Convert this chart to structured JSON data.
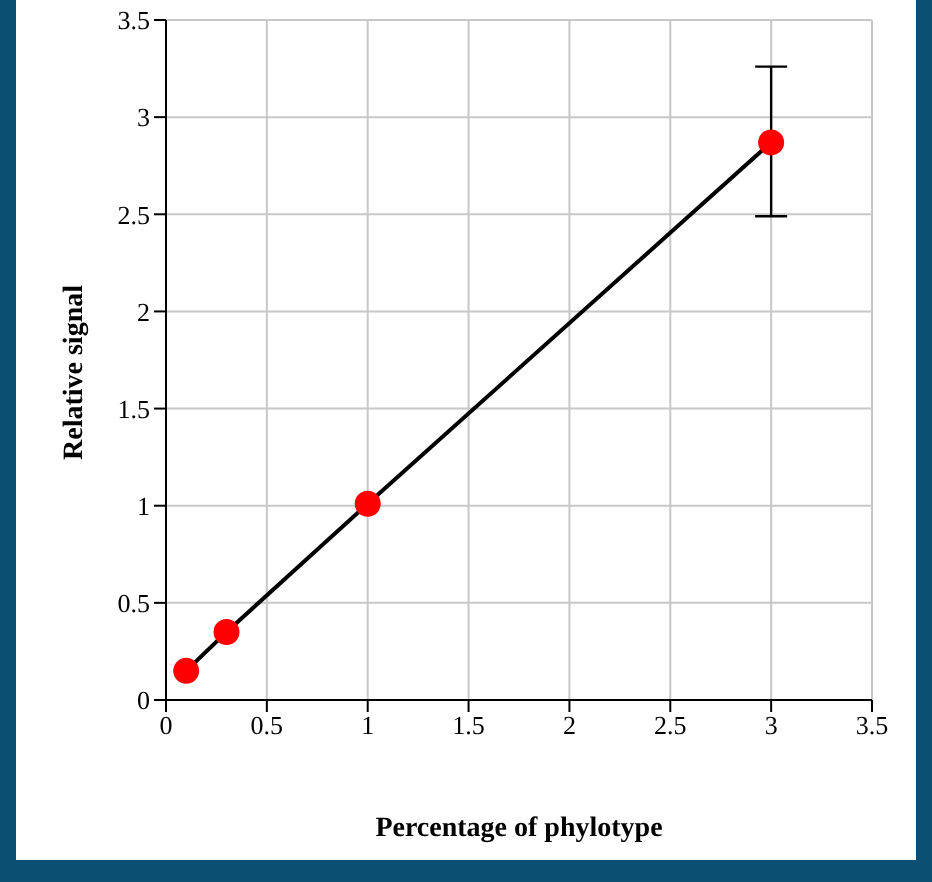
{
  "chart_data": {
    "type": "line",
    "xlabel": "Percentage of phylotype",
    "ylabel": "Relative signal",
    "x": [
      0.1,
      0.3,
      1,
      3
    ],
    "series": [
      {
        "color": "#ff0000",
        "values": [
          0.15,
          0.35,
          1.01,
          2.87
        ],
        "errors": [
          null,
          null,
          null,
          [
            2.49,
            3.26
          ]
        ]
      }
    ],
    "xlim": [
      0,
      3.5
    ],
    "xticks": [
      0,
      0.5,
      1,
      1.5,
      2,
      2.5,
      3,
      3.5
    ],
    "ylim": [
      0,
      3.5
    ],
    "yticks": [
      0,
      0.5,
      1,
      1.5,
      2,
      2.5,
      3,
      3.5
    ],
    "grid": true,
    "marker": "circle",
    "line_style": "solid",
    "legend": false
  }
}
